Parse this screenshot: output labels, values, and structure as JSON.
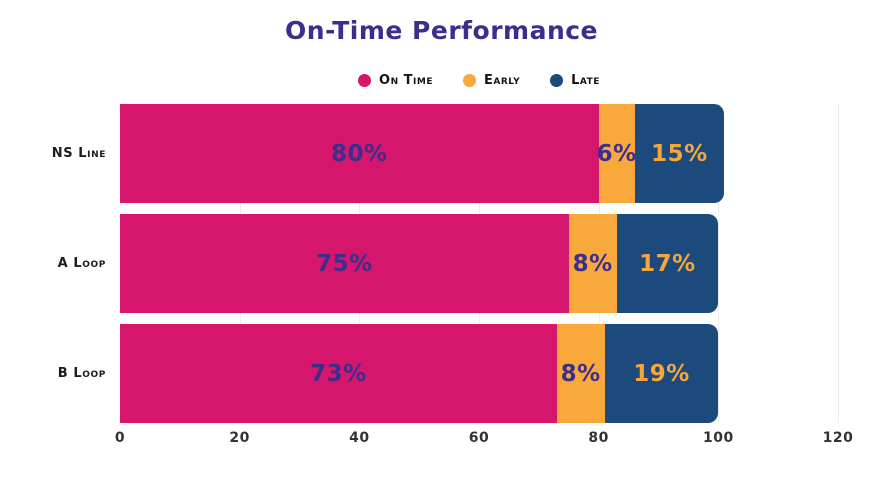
{
  "title": "On-Time Performance",
  "legend": {
    "items": [
      {
        "label": "On Time",
        "color": "#d6156c"
      },
      {
        "label": "Early",
        "color": "#f9a83b"
      },
      {
        "label": "Late",
        "color": "#1d4a7d"
      }
    ]
  },
  "chart_data": {
    "type": "bar",
    "orientation": "horizontal",
    "stacked": true,
    "title": "On-Time Performance",
    "categories": [
      "NS Line",
      "A Loop",
      "B Loop"
    ],
    "series": [
      {
        "name": "On Time",
        "color": "#d6156c",
        "label_color": "#3c2e8d",
        "values": [
          80,
          75,
          73
        ],
        "labels": [
          "80%",
          "75%",
          "73%"
        ]
      },
      {
        "name": "Early",
        "color": "#f9a83b",
        "label_color": "#3c2e8d",
        "values": [
          6,
          8,
          8
        ],
        "labels": [
          "6%",
          "8%",
          "8%"
        ]
      },
      {
        "name": "Late",
        "color": "#1d4a7d",
        "label_color": "#f6a63a",
        "values": [
          15,
          17,
          19
        ],
        "labels": [
          "15%",
          "17%",
          "19%"
        ]
      }
    ],
    "xlabel": "",
    "ylabel": "",
    "xlim": [
      0,
      120
    ],
    "x_ticks": [
      0,
      20,
      40,
      60,
      80,
      100,
      120
    ],
    "grid": "vertical-light",
    "gridline_color": "#ececec",
    "legend_position": "top",
    "title_color": "#3c2e8d",
    "axis_tick_color": "#333333",
    "category_label_color": "#1c1c1c",
    "background": "#ffffff"
  }
}
